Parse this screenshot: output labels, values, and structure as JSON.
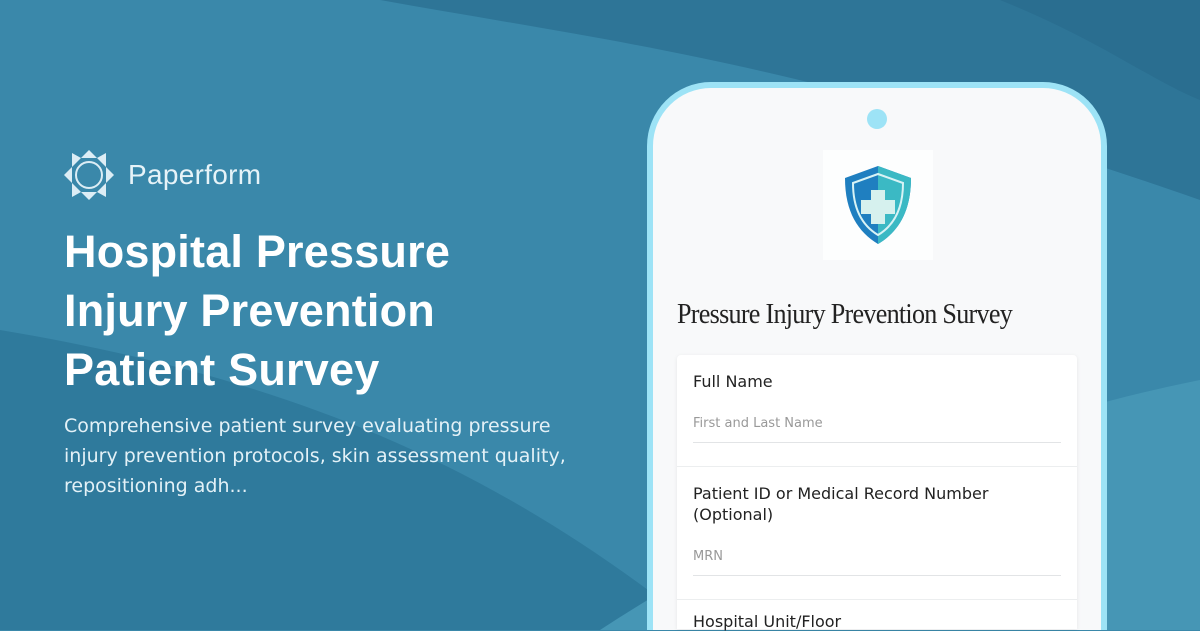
{
  "brand": {
    "name": "Paperform"
  },
  "hero": {
    "title": "Hospital Pressure Injury Prevention Patient Survey",
    "description": "Comprehensive patient survey evaluating pressure injury prevention protocols, skin assessment quality, repositioning adh..."
  },
  "form": {
    "title": "Pressure Injury Prevention Survey",
    "logo_icon": "shield-medical-cross-icon",
    "fields": [
      {
        "label": "Full Name",
        "placeholder": "First and Last Name"
      },
      {
        "label": "Patient ID or Medical Record Number (Optional)",
        "placeholder": "MRN"
      },
      {
        "label": "Hospital Unit/Floor"
      }
    ]
  },
  "colors": {
    "background": "#3a88aa",
    "phone_border": "#9de3f6"
  }
}
